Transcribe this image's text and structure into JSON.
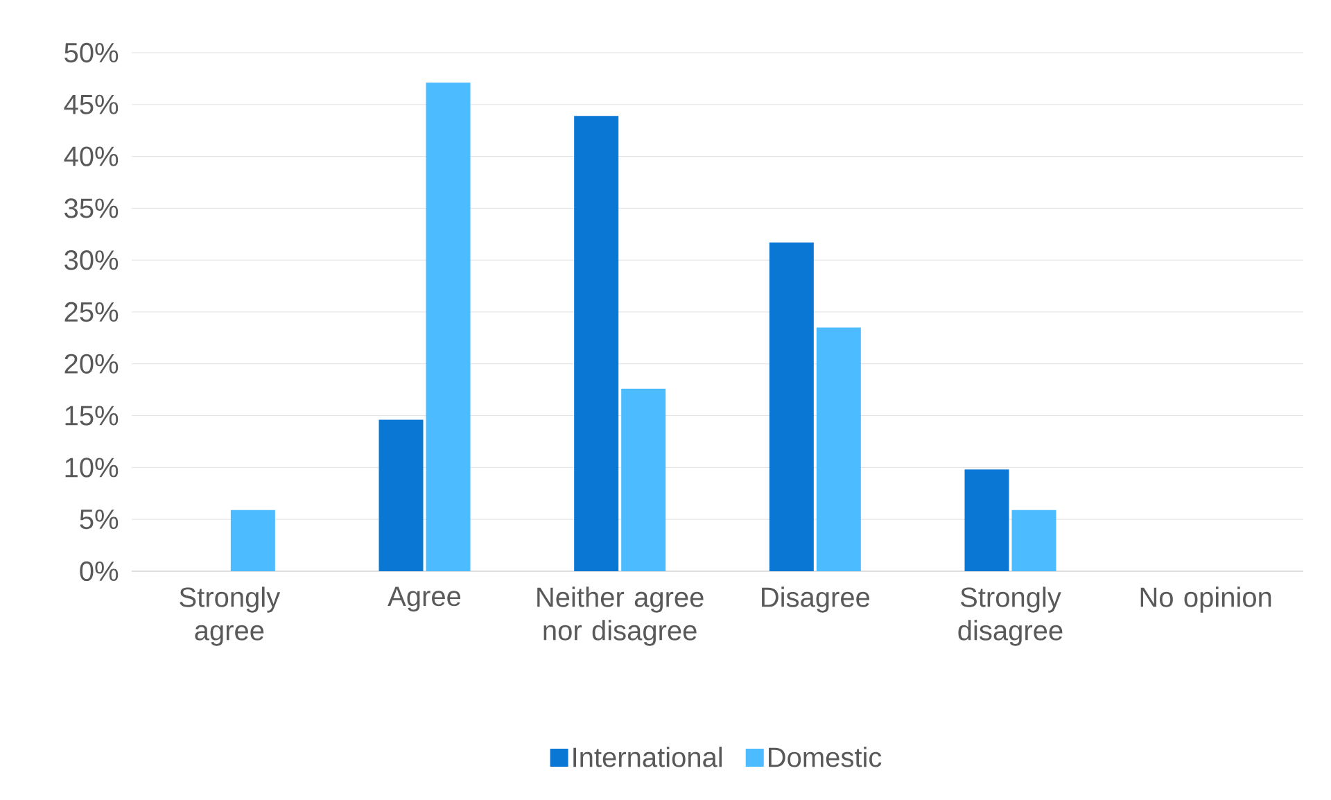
{
  "chart_data": {
    "type": "bar",
    "categories": [
      "Strongly agree",
      "Agree",
      "Neither agree nor disagree",
      "Disagree",
      "Strongly disagree",
      "No opinion"
    ],
    "series": [
      {
        "name": "International",
        "color": "#0a77d5",
        "values": [
          0,
          14.6,
          43.9,
          31.7,
          9.8,
          0
        ]
      },
      {
        "name": "Domestic",
        "color": "#4dbbff",
        "values": [
          5.9,
          47.1,
          17.6,
          23.5,
          5.9,
          0
        ]
      }
    ],
    "ylim": [
      0,
      50
    ],
    "yticks": [
      {
        "value": 0,
        "label": "0%"
      },
      {
        "value": 5,
        "label": "5%"
      },
      {
        "value": 10,
        "label": "10%"
      },
      {
        "value": 15,
        "label": "15%"
      },
      {
        "value": 20,
        "label": "20%"
      },
      {
        "value": 25,
        "label": "25%"
      },
      {
        "value": 30,
        "label": "30%"
      },
      {
        "value": 35,
        "label": "35%"
      },
      {
        "value": 40,
        "label": "40%"
      },
      {
        "value": 45,
        "label": "45%"
      },
      {
        "value": 50,
        "label": "50%"
      }
    ],
    "grid": "y",
    "legend": "bottom"
  }
}
